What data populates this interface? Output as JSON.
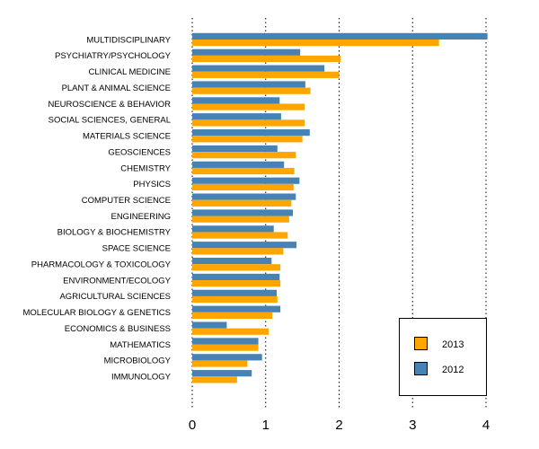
{
  "chart_data": {
    "type": "bar",
    "orientation": "horizontal",
    "title": "",
    "xlabel": "",
    "ylabel": "",
    "xlim": [
      0,
      4
    ],
    "xticks": [
      0,
      1,
      2,
      3,
      4
    ],
    "grid": "vertical dotted lines at x ticks",
    "legend_position": "bottom-right",
    "categories": [
      "MULTIDISCIPLINARY",
      "PSYCHIATRY/PSYCHOLOGY",
      "CLINICAL MEDICINE",
      "PLANT & ANIMAL SCIENCE",
      "NEUROSCIENCE & BEHAVIOR",
      "SOCIAL SCIENCES, GENERAL",
      "MATERIALS SCIENCE",
      "GEOSCIENCES",
      "CHEMISTRY",
      "PHYSICS",
      "COMPUTER SCIENCE",
      "ENGINEERING",
      "BIOLOGY & BIOCHEMISTRY",
      "SPACE SCIENCE",
      "PHARMACOLOGY & TOXICOLOGY",
      "ENVIRONMENT/ECOLOGY",
      "AGRICULTURAL SCIENCES",
      "MOLECULAR BIOLOGY & GENETICS",
      "ECONOMICS & BUSINESS",
      "MATHEMATICS",
      "MICROBIOLOGY",
      "IMMUNOLOGY"
    ],
    "series": [
      {
        "name": "2012",
        "color": "#4682b4",
        "values": [
          4.02,
          1.47,
          1.8,
          1.54,
          1.19,
          1.21,
          1.6,
          1.16,
          1.25,
          1.46,
          1.41,
          1.37,
          1.11,
          1.42,
          1.08,
          1.19,
          1.15,
          1.2,
          0.47,
          0.9,
          0.95,
          0.81
        ]
      },
      {
        "name": "2013",
        "color": "#ffa500",
        "values": [
          3.36,
          2.02,
          2.0,
          1.61,
          1.53,
          1.53,
          1.5,
          1.41,
          1.39,
          1.38,
          1.35,
          1.32,
          1.3,
          1.24,
          1.2,
          1.2,
          1.16,
          1.09,
          1.04,
          0.9,
          0.75,
          0.61
        ]
      }
    ],
    "legend": [
      {
        "label": "2013",
        "color": "#ffa500"
      },
      {
        "label": "2012",
        "color": "#4682b4"
      }
    ]
  }
}
